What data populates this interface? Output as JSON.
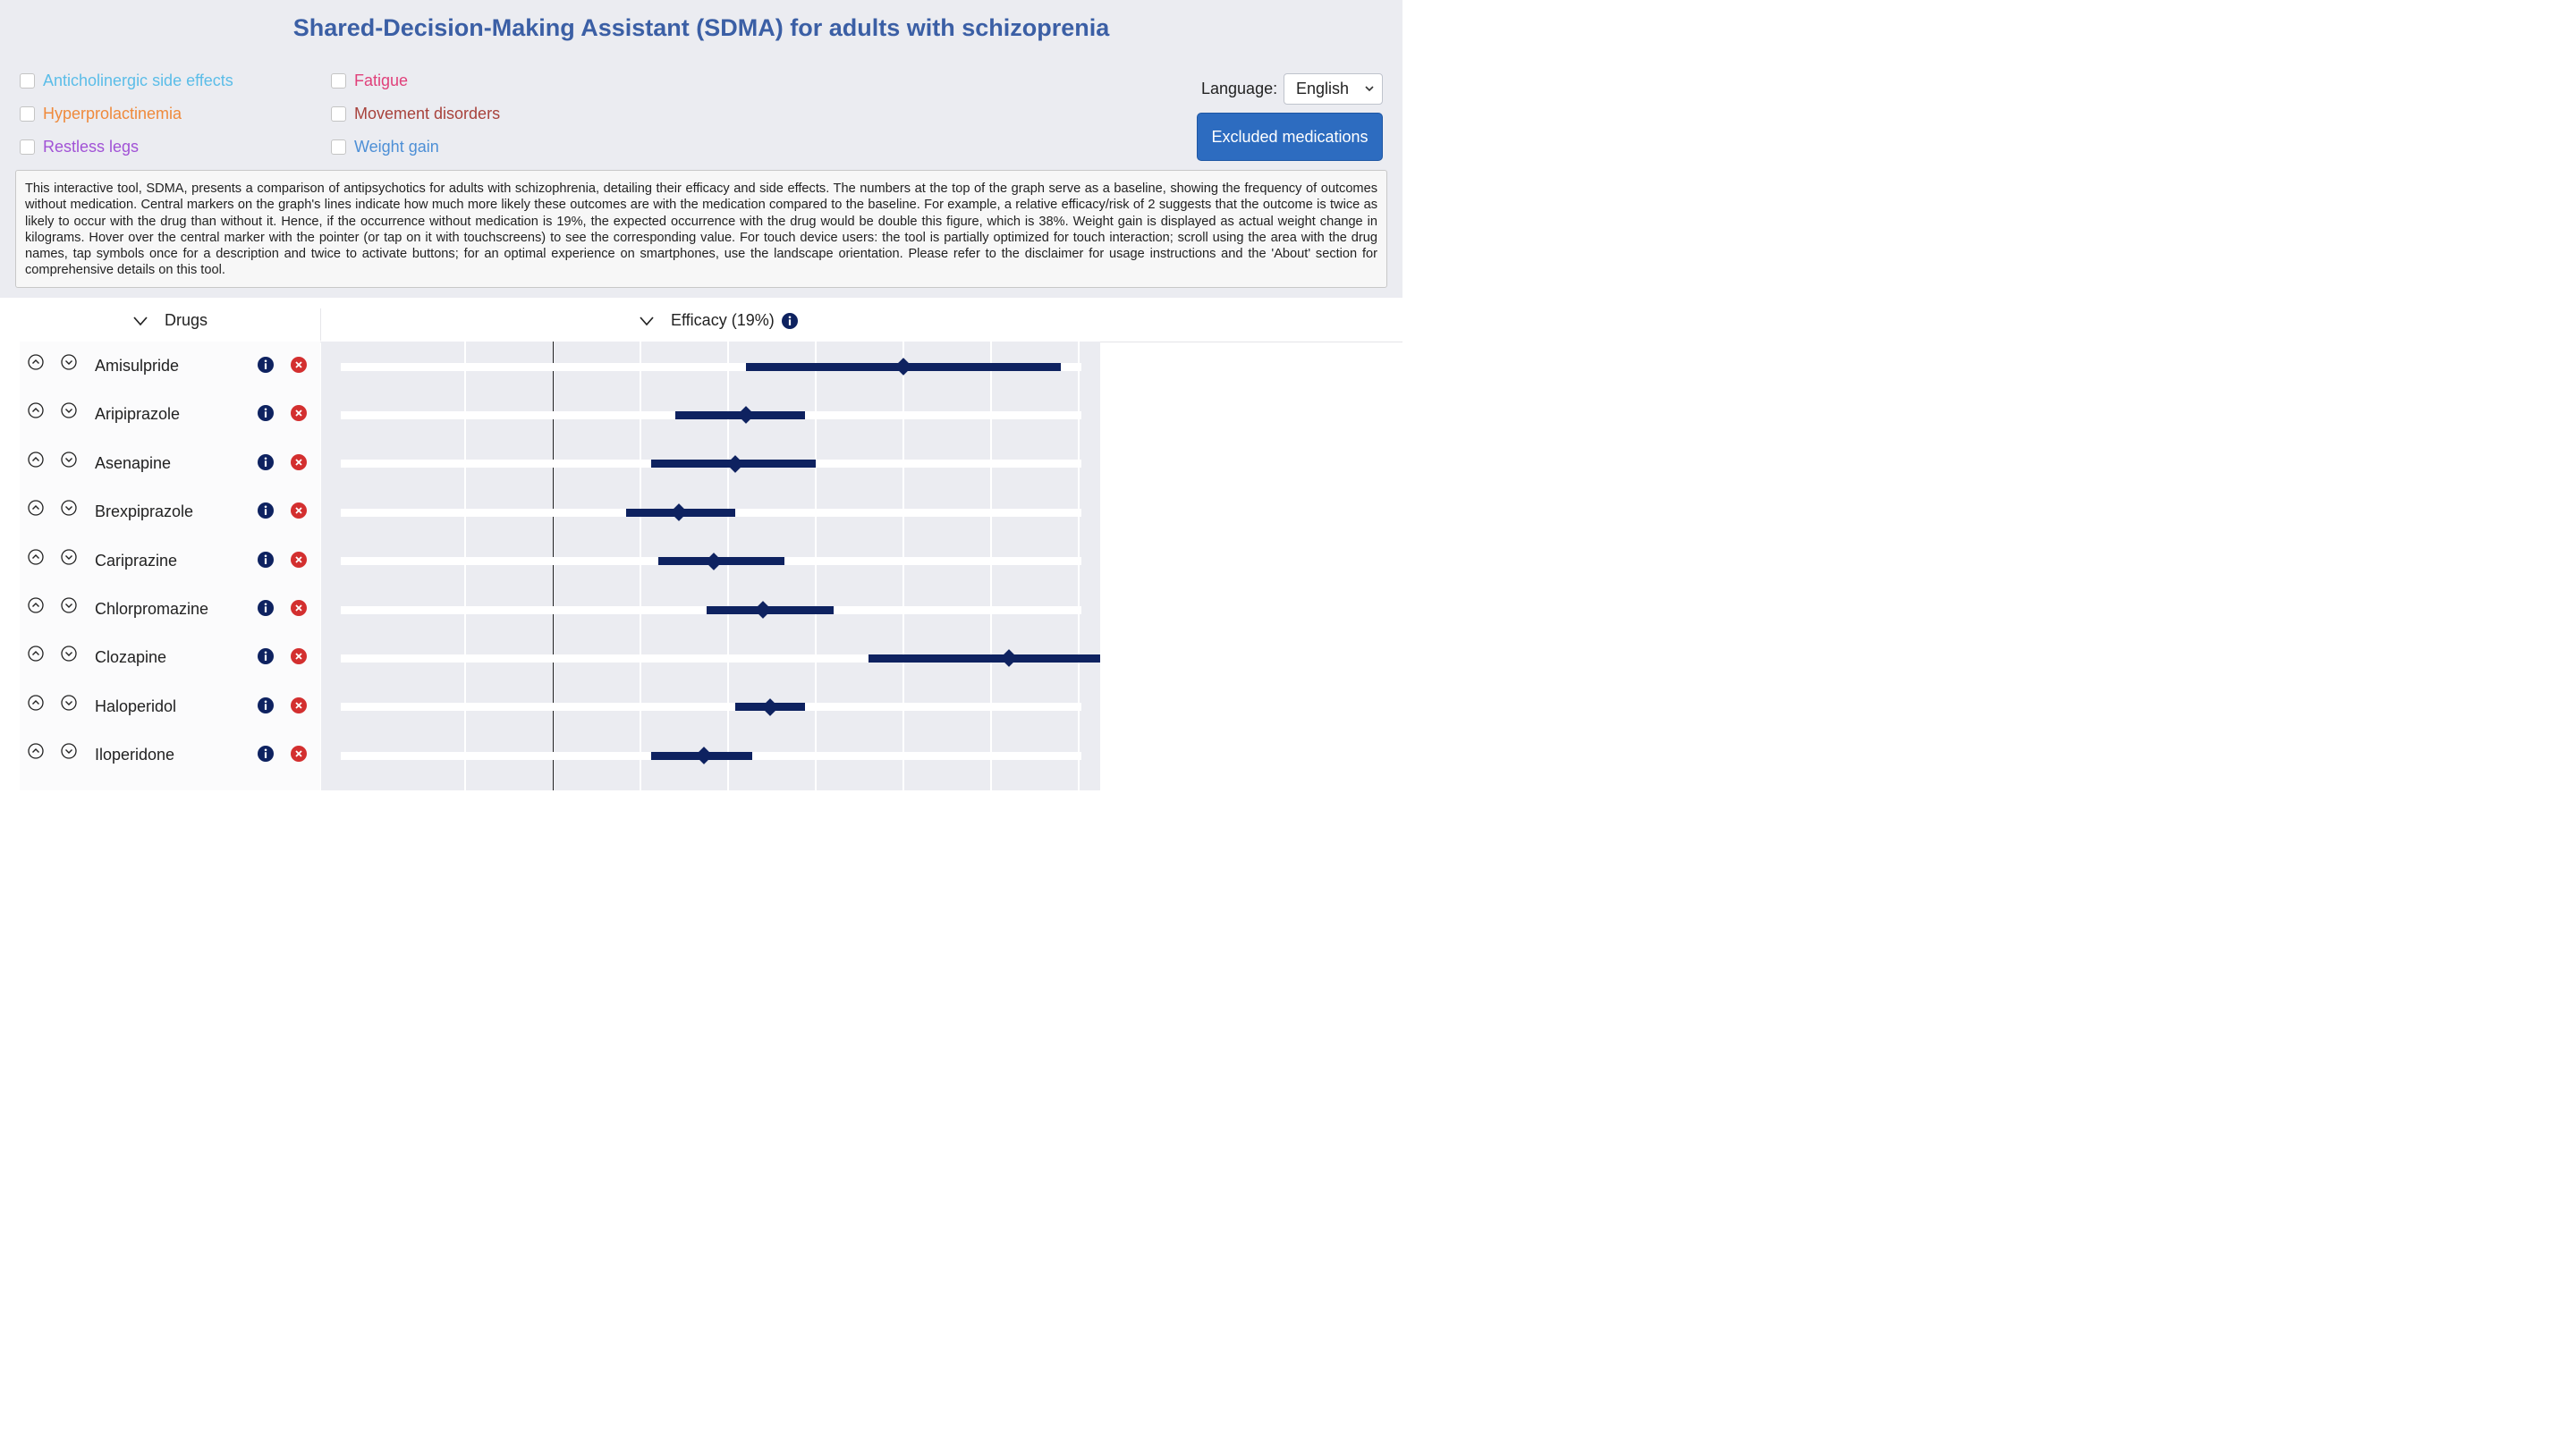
{
  "title": "Shared-Decision-Making Assistant (SDMA) for adults with schizoprenia",
  "filters": [
    {
      "label": "Anticholinergic side effects",
      "color": "#5bbde8",
      "checked": false
    },
    {
      "label": "Fatigue",
      "color": "#e0407a",
      "checked": false
    },
    {
      "label": "Hyperprolactinemia",
      "color": "#ef8a3c",
      "checked": false
    },
    {
      "label": "Movement disorders",
      "color": "#a8423c",
      "checked": false
    },
    {
      "label": "Restless legs",
      "color": "#a152d6",
      "checked": false
    },
    {
      "label": "Weight gain",
      "color": "#4d8fd6",
      "checked": false
    }
  ],
  "language": {
    "label": "Language:",
    "value": "English"
  },
  "excluded_button": "Excluded medications",
  "description": "This interactive tool, SDMA, presents a comparison of antipsychotics for adults with schizophrenia, detailing their efficacy and side effects. The numbers at the top of the graph serve as a baseline, showing the frequency of outcomes without medication. Central markers on the graph's lines indicate how much more likely these outcomes are with the medication compared to the baseline. For example, a relative efficacy/risk of 2 suggests that the outcome is twice as likely to occur with the drug than without it. Hence, if the occurrence without medication is 19%, the expected occurrence with the drug would be double this figure, which is 38%. Weight gain is displayed as actual weight change in kilograms. Hover over the central marker with the pointer (or tap on it with touchscreens) to see the corresponding value. For touch device users: the tool is partially optimized for touch interaction; scroll using the area with the drug names, tap symbols once for a description and twice to activate buttons; for an optimal experience on smartphones, use the landscape orientation. Please refer to the disclaimer for usage instructions and the 'About' section for comprehensive details on this tool.",
  "columns": {
    "drugs": "Drugs",
    "efficacy": "Efficacy (19%)"
  },
  "colors": {
    "accent": "#2d6cc0",
    "marker": "#0e2260",
    "remove": "#d32f2f",
    "title": "#3b5fa5"
  },
  "chart_data": {
    "type": "forest",
    "reference": 1,
    "xlim": [
      0.4,
      3.0
    ],
    "rows": [
      {
        "drug": "Amisulpride",
        "estimate": 2.0,
        "low": 1.55,
        "high": 2.45
      },
      {
        "drug": "Aripiprazole",
        "estimate": 1.55,
        "low": 1.35,
        "high": 1.72
      },
      {
        "drug": "Asenapine",
        "estimate": 1.52,
        "low": 1.28,
        "high": 1.75
      },
      {
        "drug": "Brexpiprazole",
        "estimate": 1.36,
        "low": 1.21,
        "high": 1.52
      },
      {
        "drug": "Cariprazine",
        "estimate": 1.46,
        "low": 1.3,
        "high": 1.66
      },
      {
        "drug": "Chlorpromazine",
        "estimate": 1.6,
        "low": 1.44,
        "high": 1.8
      },
      {
        "drug": "Clozapine",
        "estimate": 2.3,
        "low": 1.9,
        "high": 2.75
      },
      {
        "drug": "Haloperidol",
        "estimate": 1.62,
        "low": 1.52,
        "high": 1.72
      },
      {
        "drug": "Iloperidone",
        "estimate": 1.43,
        "low": 1.28,
        "high": 1.57
      }
    ]
  }
}
